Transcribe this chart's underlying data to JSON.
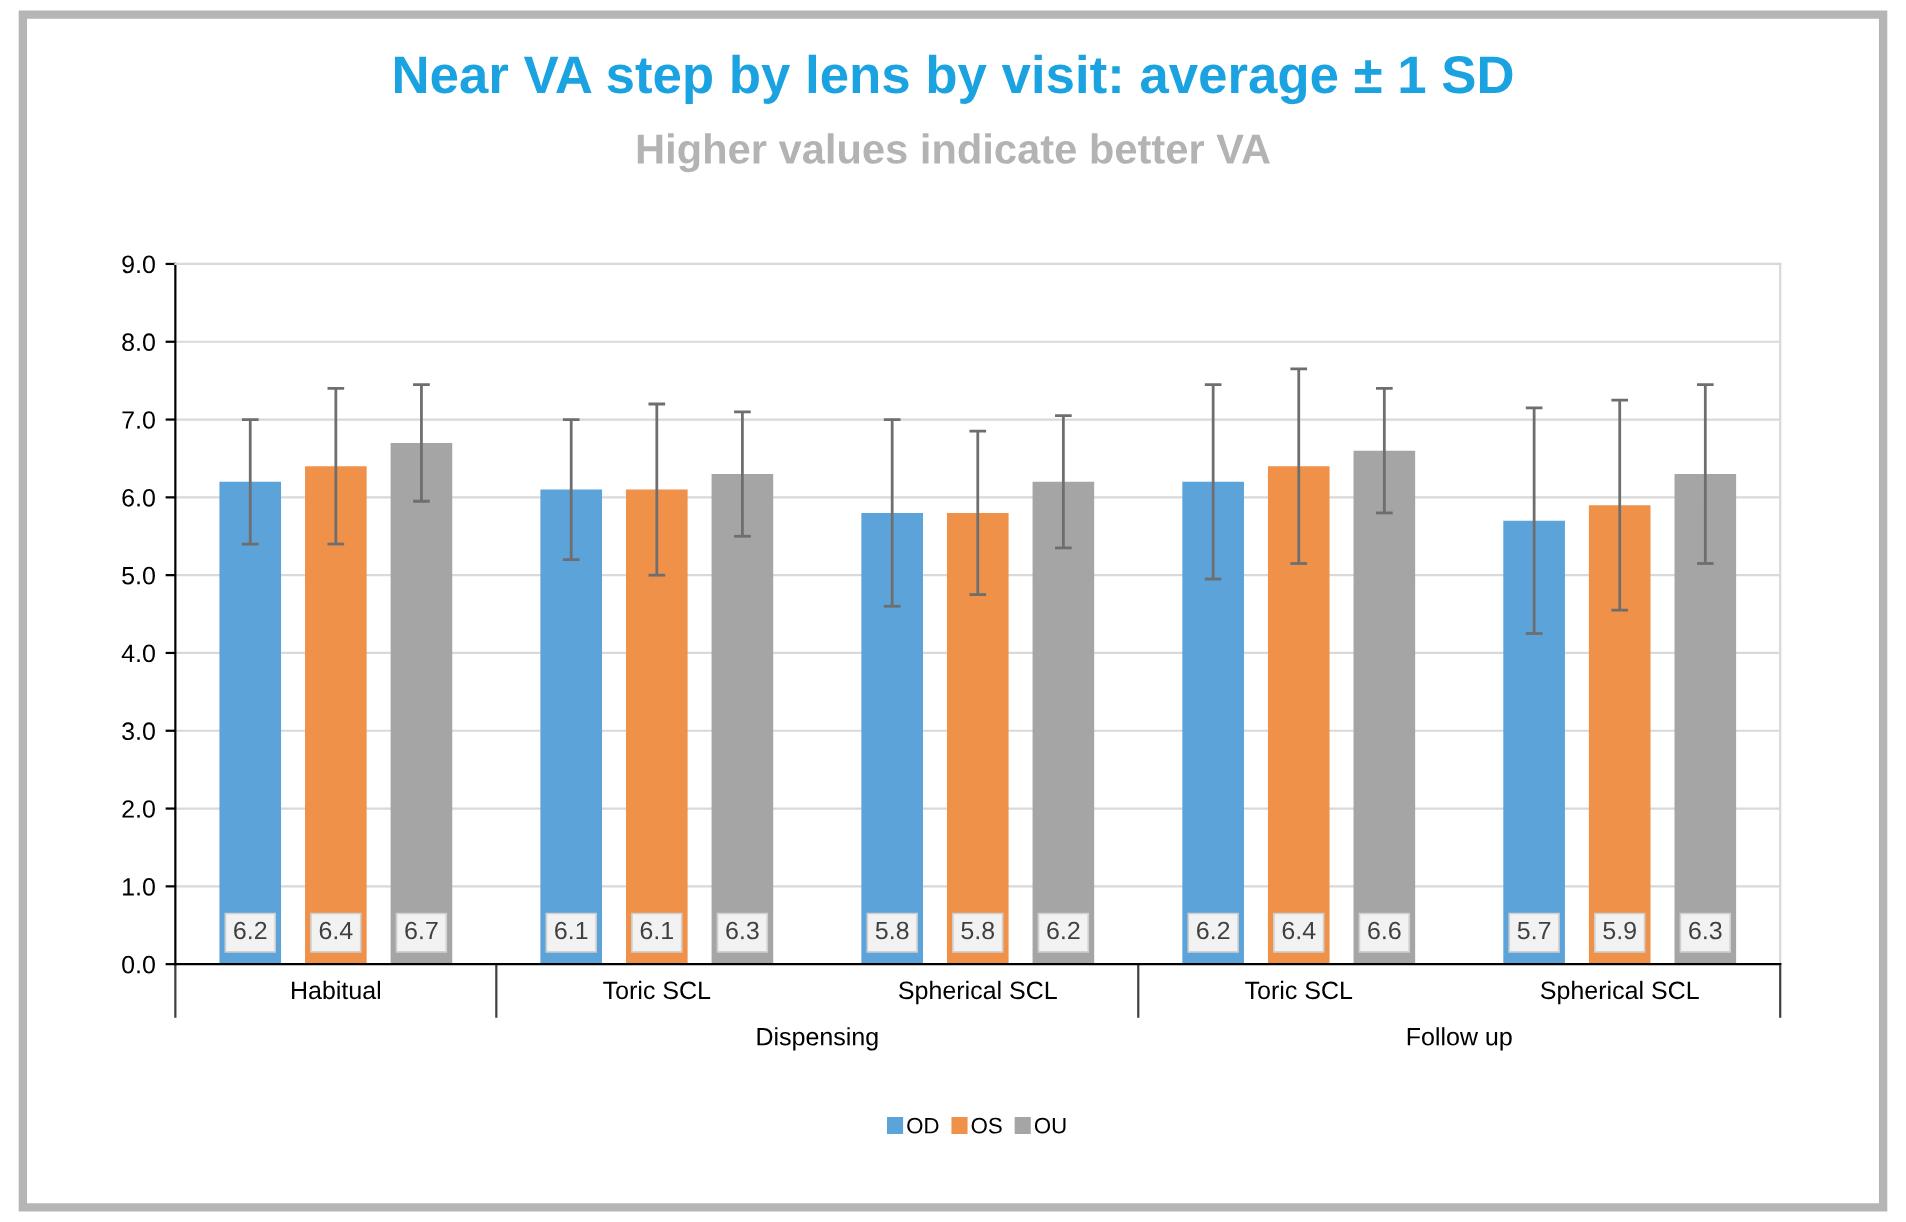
{
  "chart_data": {
    "type": "bar",
    "title": "Near VA step by lens by visit: average ± 1 SD",
    "subtitle": "Higher values indicate better VA",
    "categories": [
      "Habitual",
      "Toric SCL",
      "Spherical SCL",
      "Toric SCL",
      "Spherical SCL"
    ],
    "series": [
      {
        "name": "OD",
        "color": "#5ba3d9",
        "values": [
          6.2,
          6.1,
          5.8,
          6.2,
          5.7
        ],
        "errors": [
          0.8,
          0.9,
          1.2,
          1.25,
          1.45
        ]
      },
      {
        "name": "OS",
        "color": "#f0914a",
        "values": [
          6.4,
          6.1,
          5.8,
          6.4,
          5.9
        ],
        "errors": [
          1.0,
          1.1,
          1.05,
          1.25,
          1.35
        ]
      },
      {
        "name": "OU",
        "color": "#a5a5a5",
        "values": [
          6.7,
          6.3,
          6.2,
          6.6,
          6.3
        ],
        "errors": [
          0.75,
          0.8,
          0.85,
          0.8,
          1.15
        ]
      }
    ],
    "annotations": [
      "Dispensing",
      "Follow up"
    ],
    "ylim": [
      0,
      9
    ],
    "yticks": [
      {
        "value": 0,
        "label": "0.0"
      },
      {
        "value": 1,
        "label": "1.0"
      },
      {
        "value": 2,
        "label": "2.0"
      },
      {
        "value": 3,
        "label": "3.0"
      },
      {
        "value": 4,
        "label": "4.0"
      },
      {
        "value": 5,
        "label": "5.0"
      },
      {
        "value": 6,
        "label": "6.0"
      },
      {
        "value": 7,
        "label": "7.0"
      },
      {
        "value": 8,
        "label": "8.0"
      },
      {
        "value": 9,
        "label": "9.0"
      }
    ],
    "grid": "y",
    "legend": "bottom",
    "data_labels": true
  }
}
